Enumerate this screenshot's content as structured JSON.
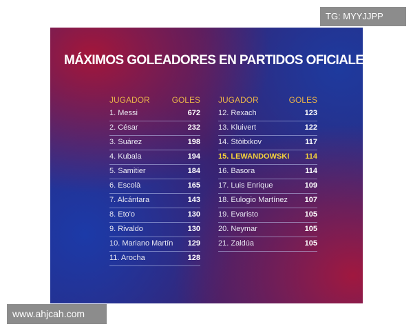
{
  "title": "MÁXIMOS GOLEADORES EN PARTIDOS OFICIALES",
  "header": {
    "player": "JUGADOR",
    "goals": "GOLES"
  },
  "left": [
    {
      "name": "1. Messi",
      "goals": "672"
    },
    {
      "name": "2. César",
      "goals": "232"
    },
    {
      "name": "3. Suárez",
      "goals": "198"
    },
    {
      "name": "4. Kubala",
      "goals": "194"
    },
    {
      "name": "5. Samitier",
      "goals": "184"
    },
    {
      "name": "6. Escolà",
      "goals": "165"
    },
    {
      "name": "7. Alcántara",
      "goals": "143"
    },
    {
      "name": "8. Eto'o",
      "goals": "130"
    },
    {
      "name": "9. Rivaldo",
      "goals": "130"
    },
    {
      "name": "10. Mariano Martín",
      "goals": "129"
    },
    {
      "name": "11. Arocha",
      "goals": "128"
    }
  ],
  "right": [
    {
      "name": "12. Rexach",
      "goals": "123"
    },
    {
      "name": "13. Kluivert",
      "goals": "122"
    },
    {
      "name": "14. Stòitxkov",
      "goals": "117"
    },
    {
      "name": "15. LEWANDOWSKI",
      "goals": "114"
    },
    {
      "name": "16. Basora",
      "goals": "114"
    },
    {
      "name": "17. Luis Enrique",
      "goals": "109"
    },
    {
      "name": "18. Eulogio Martínez",
      "goals": "107"
    },
    {
      "name": "19. Evaristo",
      "goals": "105"
    },
    {
      "name": "20. Neymar",
      "goals": "105"
    },
    {
      "name": "21. Zaldúa",
      "goals": "105"
    }
  ],
  "highlight_color": "#f4d23a",
  "watermark_top": "TG: MYYJJPP",
  "watermark_bottom": "www.ahjcah.com"
}
